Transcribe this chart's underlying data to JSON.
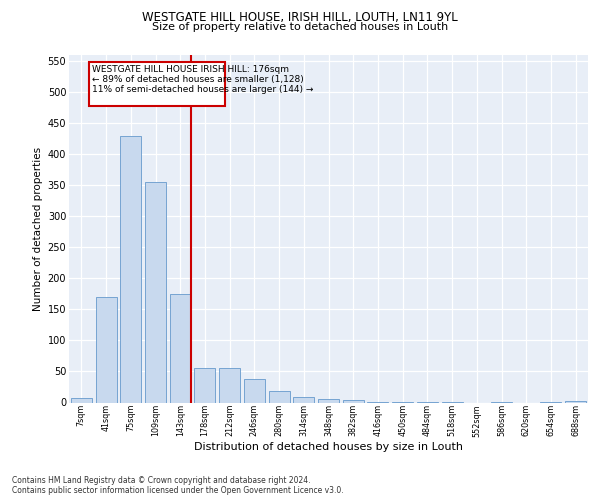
{
  "title1": "WESTGATE HILL HOUSE, IRISH HILL, LOUTH, LN11 9YL",
  "title2": "Size of property relative to detached houses in Louth",
  "xlabel": "Distribution of detached houses by size in Louth",
  "ylabel": "Number of detached properties",
  "categories": [
    "7sqm",
    "41sqm",
    "75sqm",
    "109sqm",
    "143sqm",
    "178sqm",
    "212sqm",
    "246sqm",
    "280sqm",
    "314sqm",
    "348sqm",
    "382sqm",
    "416sqm",
    "450sqm",
    "484sqm",
    "518sqm",
    "552sqm",
    "586sqm",
    "620sqm",
    "654sqm",
    "688sqm"
  ],
  "values": [
    8,
    170,
    430,
    356,
    175,
    56,
    55,
    38,
    18,
    9,
    5,
    4,
    1,
    1,
    1,
    1,
    0,
    1,
    0,
    1,
    2
  ],
  "bar_color": "#c8d9ee",
  "bar_edge_color": "#6699cc",
  "marker_line_color": "#cc0000",
  "box_edge_color": "#cc0000",
  "ylim": [
    0,
    560
  ],
  "yticks": [
    0,
    50,
    100,
    150,
    200,
    250,
    300,
    350,
    400,
    450,
    500,
    550
  ],
  "annotation_line1": "WESTGATE HILL HOUSE IRISH HILL: 176sqm",
  "annotation_line2": "← 89% of detached houses are smaller (1,128)",
  "annotation_line3": "11% of semi-detached houses are larger (144) →",
  "footnote1": "Contains HM Land Registry data © Crown copyright and database right 2024.",
  "footnote2": "Contains public sector information licensed under the Open Government Licence v3.0.",
  "background_color": "#ffffff",
  "plot_bg_color": "#e8eef7"
}
